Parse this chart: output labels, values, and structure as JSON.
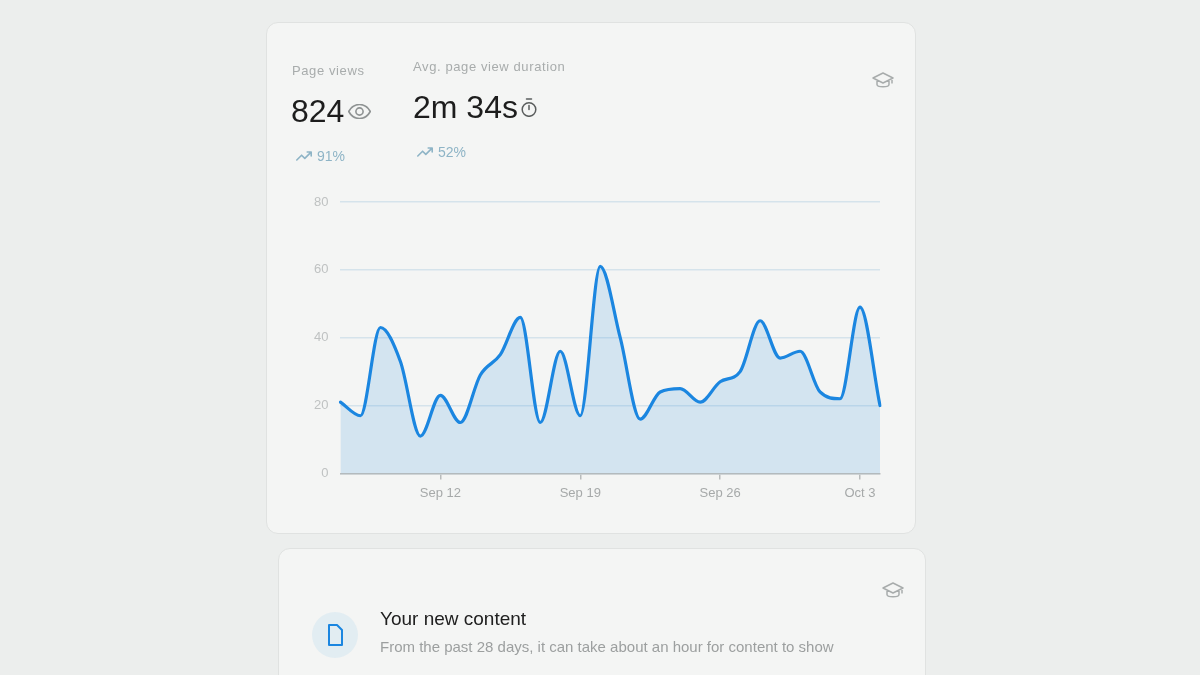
{
  "chart_data": {
    "type": "area",
    "categories": [
      null,
      null,
      null,
      null,
      null,
      "Sep 12",
      null,
      null,
      null,
      null,
      null,
      null,
      "Sep 19",
      null,
      null,
      null,
      null,
      null,
      null,
      "Sep 26",
      null,
      null,
      null,
      null,
      null,
      null,
      "Oct 3",
      null
    ],
    "values": [
      21,
      17,
      43,
      33,
      11,
      23,
      15,
      29,
      35,
      46,
      15,
      36,
      17,
      61,
      40,
      16,
      24,
      25,
      21,
      27,
      30,
      45,
      34,
      36,
      24,
      22,
      49,
      20
    ],
    "color": "#1b86e0",
    "ylim": [
      0,
      80
    ],
    "yticks": [
      0,
      20,
      40,
      60,
      80
    ],
    "grid": "y",
    "annotations": [
      "Page views",
      "824",
      "91%",
      "Avg. page view duration",
      "2m 34s",
      "52%",
      "Your new content",
      "From the past 28 days, it can take about an hour for content to show"
    ]
  }
}
